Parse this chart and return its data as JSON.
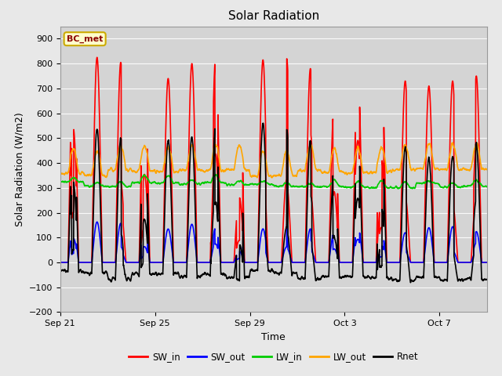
{
  "title": "Solar Radiation",
  "xlabel": "Time",
  "ylabel": "Solar Radiation (W/m2)",
  "station_label": "BC_met",
  "ylim": [
    -200,
    950
  ],
  "yticks": [
    -200,
    -100,
    0,
    100,
    200,
    300,
    400,
    500,
    600,
    700,
    800,
    900
  ],
  "fig_bg_color": "#e8e8e8",
  "plot_bg_color": "#d4d4d4",
  "colors": {
    "SW_in": "#ff0000",
    "SW_out": "#0000ff",
    "LW_in": "#00cc00",
    "LW_out": "#ffa500",
    "Rnet": "#000000"
  },
  "linewidths": {
    "SW_in": 1.2,
    "SW_out": 1.2,
    "LW_in": 1.2,
    "LW_out": 1.2,
    "Rnet": 1.2
  },
  "xtick_labels": [
    "Sep 21",
    "Sep 25",
    "Sep 29",
    "Oct 3",
    "Oct 7"
  ],
  "xtick_positions": [
    0,
    4,
    8,
    12,
    16
  ],
  "num_days": 18,
  "pts_per_day": 144,
  "title_fontsize": 11,
  "label_fontsize": 9,
  "tick_fontsize": 8
}
